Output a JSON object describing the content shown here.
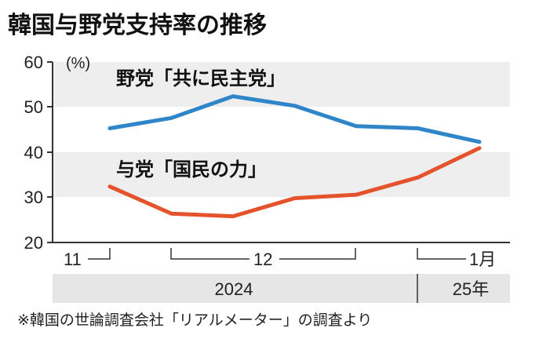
{
  "colors": {
    "band": "#eeeeee",
    "opposition": "#2e86c8",
    "ruling": "#e4532b",
    "axis": "#333333",
    "year_bar": "#e6e6e6"
  },
  "chart_data": {
    "type": "line",
    "title": "韓国与野党支持率の推移",
    "unit": "(%)",
    "y_ticks": [
      "60",
      "50",
      "40",
      "30",
      "20"
    ],
    "ylim": [
      20,
      60
    ],
    "x": [
      0,
      1,
      2,
      3,
      4,
      5,
      6
    ],
    "series": [
      {
        "name": "野党「共に民主党」",
        "values": [
          45.3,
          47.6,
          52.4,
          50.3,
          45.8,
          45.3,
          42.3
        ]
      },
      {
        "name": "与党「国民の力」",
        "values": [
          32.4,
          26.4,
          25.8,
          29.8,
          30.6,
          34.4,
          40.9
        ]
      }
    ],
    "x_labels": {
      "nov": "11",
      "dec": "12",
      "jan": "1月"
    },
    "years": {
      "y2024": "2024",
      "y2025": "25年"
    },
    "source": "※韓国の世論調査会社「リアルメーター」の調査より"
  }
}
